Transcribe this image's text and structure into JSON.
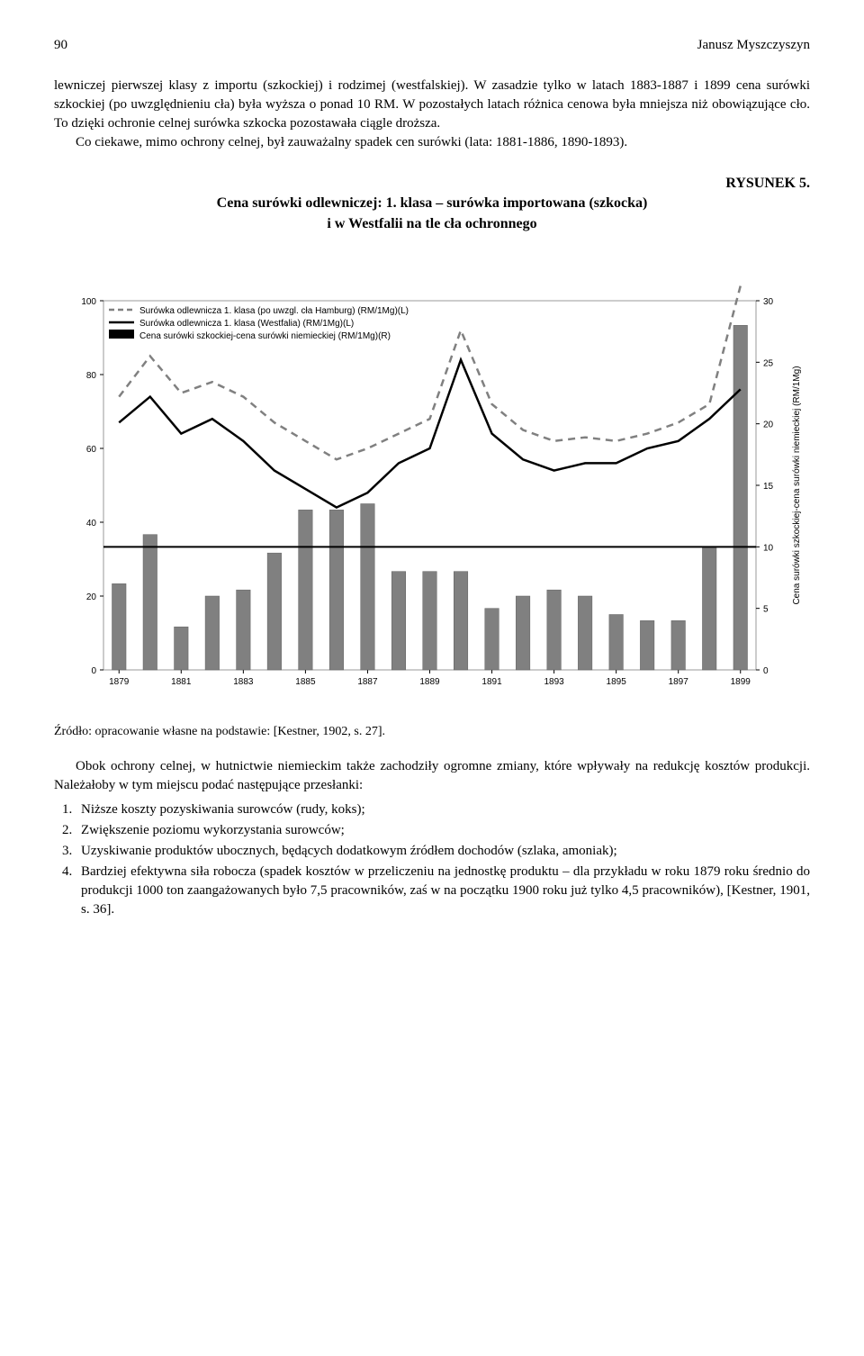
{
  "header": {
    "page_number": "90",
    "author": "Janusz Myszczyszyn"
  },
  "paragraph1": "lewniczej pierwszej klasy z importu (szkockiej) i rodzimej (westfalskiej). W zasadzie tylko w latach 1883-1887 i 1899 cena surówki szkockiej (po uwzględnieniu cła) była wyższa o ponad 10 RM. W pozostałych latach różnica cenowa była mniejsza niż obowiązujące cło. To dzięki ochronie celnej surówka szkocka pozostawała ciągle droższa.",
  "paragraph1b": "Co ciekawe, mimo ochrony celnej, był zauważalny spadek cen surówki (lata: 1881-1886, 1890-1893).",
  "figure": {
    "label": "RYSUNEK 5.",
    "title_line1": "Cena surówki odlewniczej: 1. klasa – surówka importowana (szkocka)",
    "title_line2": "i w Westfalii na tle cła ochronnego"
  },
  "chart": {
    "type": "combo-bar-line-dual-axis",
    "background_color": "#ffffff",
    "plot_border_color": "#9a9a9a",
    "font_family": "Arial",
    "legend_fontsize": 10,
    "axis_fontsize": 10,
    "x_categories": [
      "1879",
      "1880",
      "1881",
      "1882",
      "1883",
      "1884",
      "1885",
      "1886",
      "1887",
      "1888",
      "1889",
      "1890",
      "1891",
      "1892",
      "1893",
      "1894",
      "1895",
      "1896",
      "1897",
      "1898",
      "1899"
    ],
    "x_tick_labels": [
      "1879",
      "1881",
      "1883",
      "1885",
      "1887",
      "1889",
      "1891",
      "1893",
      "1895",
      "1897",
      "1899"
    ],
    "left_axis": {
      "min": 0,
      "max": 100,
      "tick_step": 20,
      "label": ""
    },
    "right_axis": {
      "min": 0,
      "max": 30,
      "tick_step": 5,
      "label": "Cena surówki szkockiej-cena surówki niemieckiej (RM/1Mg)"
    },
    "tariff_line": {
      "value": 10,
      "color": "#000000",
      "width": 2
    },
    "series": [
      {
        "name": "Surówka odlewnicza 1. klasa (po uwzgl. cła Hamburg) (RM/1Mg)(L)",
        "type": "line",
        "style": "dashed",
        "color": "#808080",
        "width": 2.5,
        "axis": "left",
        "values": [
          74,
          85,
          75,
          78,
          74,
          67,
          62,
          57,
          60,
          64,
          68,
          92,
          72,
          65,
          62,
          63,
          62,
          64,
          67,
          72,
          104
        ]
      },
      {
        "name": "Surówka odlewnicza 1. klasa (Westfalia) (RM/1Mg)(L)",
        "type": "line",
        "style": "solid",
        "color": "#000000",
        "width": 2.5,
        "axis": "left",
        "values": [
          67,
          74,
          64,
          68,
          62,
          54,
          49,
          44,
          48,
          56,
          60,
          84,
          64,
          57,
          54,
          56,
          56,
          60,
          62,
          68,
          76
        ]
      },
      {
        "name": "Cena surówki szkockiej-cena surówki niemieckiej (RM/1Mg)(R)",
        "type": "bar",
        "color": "#808080",
        "border_color": "#606060",
        "bar_width": 0.45,
        "axis": "right",
        "values": [
          7,
          11,
          3.5,
          6,
          6.5,
          9.5,
          13,
          13,
          13.5,
          8,
          8,
          8,
          5,
          6,
          6.5,
          6,
          4.5,
          4,
          4,
          10,
          28
        ]
      }
    ]
  },
  "source": "Źródło: opracowanie własne na podstawie: [Kestner, 1902, s. 27].",
  "paragraph2": "Obok ochrony celnej, w hutnictwie niemieckim także zachodziły ogromne zmiany, które wpływały na redukcję kosztów produkcji. Należałoby w tym miejscu podać następujące przesłanki:",
  "list": {
    "items": [
      "Niższe koszty pozyskiwania surowców (rudy, koks);",
      "Zwiększenie poziomu wykorzystania surowców;",
      "Uzyskiwanie produktów ubocznych, będących dodatkowym źródłem dochodów (szlaka, amoniak);",
      "Bardziej efektywna siła robocza (spadek kosztów w przeliczeniu na jednostkę produktu – dla przykładu w roku 1879 roku średnio do produkcji 1000 ton zaangażowanych było 7,5 pracowników, zaś w na początku 1900 roku już tylko 4,5 pracowników), [Kestner, 1901, s. 36]."
    ]
  }
}
